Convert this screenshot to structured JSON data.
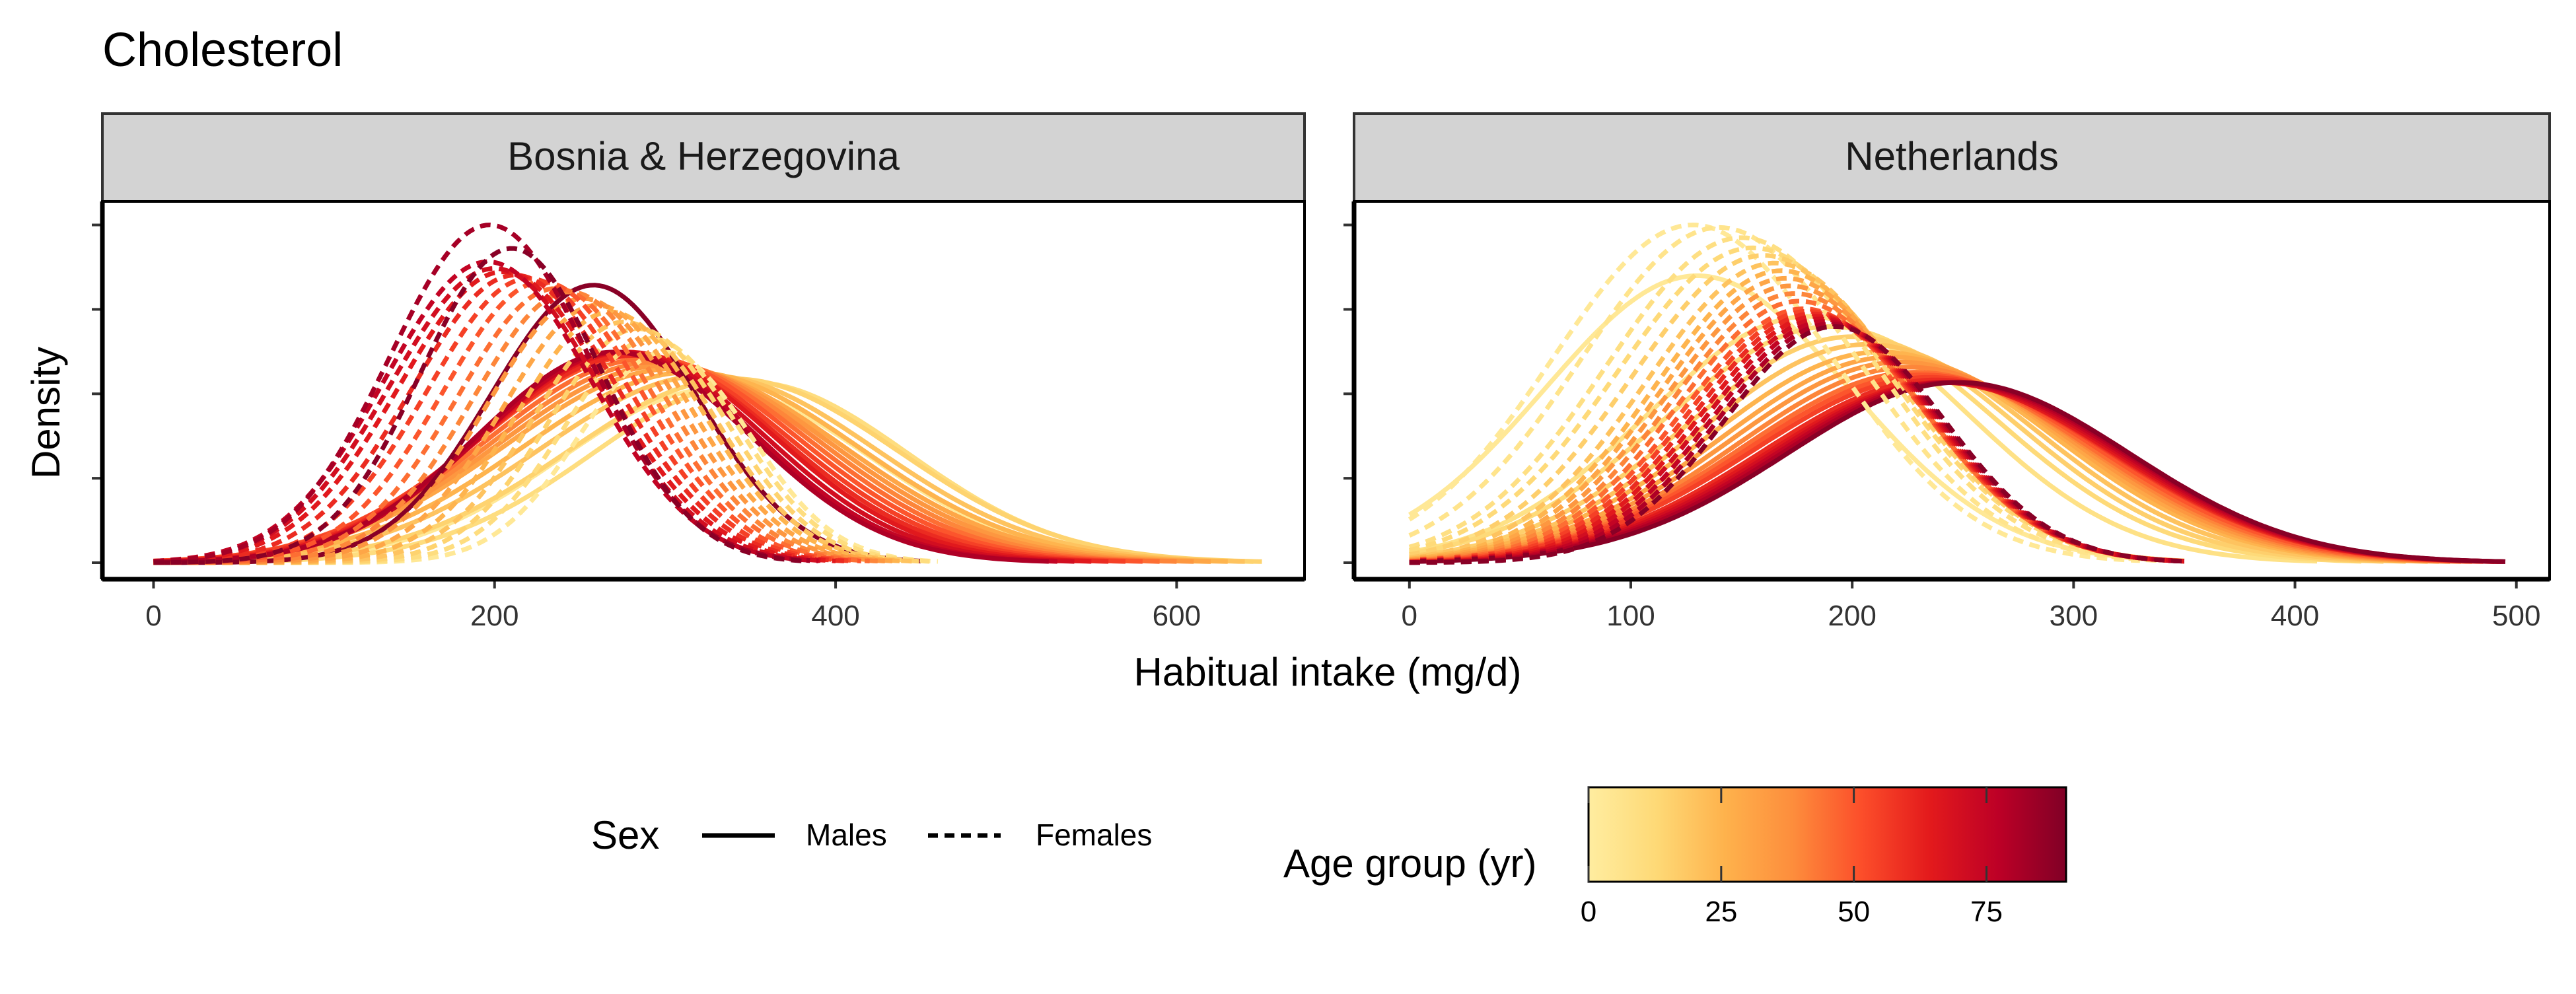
{
  "chart_data": {
    "type": "line",
    "title": "Cholesterol",
    "xlabel": "Habitual intake (mg/d)",
    "ylabel": "Density",
    "grid": false,
    "panels": [
      {
        "name": "Bosnia & Herzegovina",
        "xlim": [
          -30,
          675
        ],
        "xticks": [
          0,
          200,
          400,
          600
        ],
        "x_range": [
          0,
          650
        ],
        "curves": [
          {
            "sex": "Males",
            "age": 3,
            "peak_x": 330,
            "peak_density": 0.0052,
            "x_end": 620
          },
          {
            "sex": "Males",
            "age": 10,
            "peak_x": 350,
            "peak_density": 0.0054,
            "x_end": 645
          },
          {
            "sex": "Males",
            "age": 15,
            "peak_x": 340,
            "peak_density": 0.0055,
            "x_end": 650
          },
          {
            "sex": "Males",
            "age": 20,
            "peak_x": 325,
            "peak_density": 0.0056,
            "x_end": 640
          },
          {
            "sex": "Males",
            "age": 25,
            "peak_x": 315,
            "peak_density": 0.0057,
            "x_end": 630
          },
          {
            "sex": "Males",
            "age": 30,
            "peak_x": 305,
            "peak_density": 0.0058,
            "x_end": 620
          },
          {
            "sex": "Males",
            "age": 35,
            "peak_x": 300,
            "peak_density": 0.0059,
            "x_end": 610
          },
          {
            "sex": "Males",
            "age": 40,
            "peak_x": 295,
            "peak_density": 0.006,
            "x_end": 600
          },
          {
            "sex": "Males",
            "age": 45,
            "peak_x": 290,
            "peak_density": 0.0061,
            "x_end": 590
          },
          {
            "sex": "Males",
            "age": 50,
            "peak_x": 285,
            "peak_density": 0.0062,
            "x_end": 580
          },
          {
            "sex": "Males",
            "age": 55,
            "peak_x": 282,
            "peak_density": 0.0062,
            "x_end": 570
          },
          {
            "sex": "Males",
            "age": 60,
            "peak_x": 280,
            "peak_density": 0.0062,
            "x_end": 560
          },
          {
            "sex": "Males",
            "age": 65,
            "peak_x": 278,
            "peak_density": 0.0063,
            "x_end": 550
          },
          {
            "sex": "Males",
            "age": 70,
            "peak_x": 275,
            "peak_density": 0.0063,
            "x_end": 540
          },
          {
            "sex": "Males",
            "age": 75,
            "peak_x": 273,
            "peak_density": 0.0063,
            "x_end": 530
          },
          {
            "sex": "Males",
            "age": 80,
            "peak_x": 270,
            "peak_density": 0.0063,
            "x_end": 525
          },
          {
            "sex": "Males",
            "age": 88,
            "peak_x": 258,
            "peak_density": 0.0083,
            "x_end": 450
          },
          {
            "sex": "Females",
            "age": 3,
            "peak_x": 300,
            "peak_density": 0.0063,
            "x_end": 460
          },
          {
            "sex": "Females",
            "age": 10,
            "peak_x": 292,
            "peak_density": 0.0067,
            "x_end": 455
          },
          {
            "sex": "Females",
            "age": 15,
            "peak_x": 284,
            "peak_density": 0.007,
            "x_end": 450
          },
          {
            "sex": "Females",
            "age": 20,
            "peak_x": 276,
            "peak_density": 0.0072,
            "x_end": 445
          },
          {
            "sex": "Females",
            "age": 25,
            "peak_x": 268,
            "peak_density": 0.0075,
            "x_end": 440
          },
          {
            "sex": "Females",
            "age": 30,
            "peak_x": 260,
            "peak_density": 0.0077,
            "x_end": 435
          },
          {
            "sex": "Females",
            "age": 35,
            "peak_x": 252,
            "peak_density": 0.0079,
            "x_end": 430
          },
          {
            "sex": "Females",
            "age": 40,
            "peak_x": 244,
            "peak_density": 0.0081,
            "x_end": 425
          },
          {
            "sex": "Females",
            "age": 45,
            "peak_x": 236,
            "peak_density": 0.0082,
            "x_end": 420
          },
          {
            "sex": "Females",
            "age": 50,
            "peak_x": 228,
            "peak_density": 0.0084,
            "x_end": 415
          },
          {
            "sex": "Females",
            "age": 55,
            "peak_x": 220,
            "peak_density": 0.0085,
            "x_end": 410
          },
          {
            "sex": "Females",
            "age": 60,
            "peak_x": 212,
            "peak_density": 0.0086,
            "x_end": 405
          },
          {
            "sex": "Females",
            "age": 65,
            "peak_x": 205,
            "peak_density": 0.0087,
            "x_end": 400
          },
          {
            "sex": "Females",
            "age": 70,
            "peak_x": 200,
            "peak_density": 0.0088,
            "x_end": 395
          },
          {
            "sex": "Females",
            "age": 75,
            "peak_x": 196,
            "peak_density": 0.009,
            "x_end": 390
          },
          {
            "sex": "Females",
            "age": 82,
            "peak_x": 197,
            "peak_density": 0.0101,
            "x_end": 385
          },
          {
            "sex": "Females",
            "age": 88,
            "peak_x": 210,
            "peak_density": 0.0094,
            "x_end": 380
          }
        ]
      },
      {
        "name": "Netherlands",
        "xlim": [
          -25,
          515
        ],
        "xticks": [
          0,
          100,
          200,
          300,
          400,
          500
        ],
        "x_range": [
          0,
          495
        ],
        "curves": [
          {
            "sex": "Males",
            "age": 3,
            "peak_x": 130,
            "peak_density": 0.0113,
            "x_end": 350
          },
          {
            "sex": "Males",
            "age": 8,
            "peak_x": 180,
            "peak_density": 0.0097,
            "x_end": 410
          },
          {
            "sex": "Males",
            "age": 12,
            "peak_x": 190,
            "peak_density": 0.0093,
            "x_end": 430
          },
          {
            "sex": "Males",
            "age": 16,
            "peak_x": 200,
            "peak_density": 0.0089,
            "x_end": 440
          },
          {
            "sex": "Males",
            "age": 20,
            "peak_x": 207,
            "peak_density": 0.0086,
            "x_end": 450
          },
          {
            "sex": "Males",
            "age": 25,
            "peak_x": 213,
            "peak_density": 0.0083,
            "x_end": 460
          },
          {
            "sex": "Males",
            "age": 30,
            "peak_x": 218,
            "peak_density": 0.0081,
            "x_end": 465
          },
          {
            "sex": "Males",
            "age": 35,
            "peak_x": 222,
            "peak_density": 0.0079,
            "x_end": 470
          },
          {
            "sex": "Males",
            "age": 40,
            "peak_x": 226,
            "peak_density": 0.0077,
            "x_end": 475
          },
          {
            "sex": "Males",
            "age": 45,
            "peak_x": 229,
            "peak_density": 0.0075,
            "x_end": 480
          },
          {
            "sex": "Males",
            "age": 50,
            "peak_x": 232,
            "peak_density": 0.0074,
            "x_end": 485
          },
          {
            "sex": "Males",
            "age": 55,
            "peak_x": 235,
            "peak_density": 0.0073,
            "x_end": 490
          },
          {
            "sex": "Males",
            "age": 60,
            "peak_x": 238,
            "peak_density": 0.0072,
            "x_end": 490
          },
          {
            "sex": "Males",
            "age": 65,
            "peak_x": 240,
            "peak_density": 0.0071,
            "x_end": 492
          },
          {
            "sex": "Males",
            "age": 70,
            "peak_x": 242,
            "peak_density": 0.0071,
            "x_end": 493
          },
          {
            "sex": "Males",
            "age": 75,
            "peak_x": 244,
            "peak_density": 0.0071,
            "x_end": 494
          },
          {
            "sex": "Males",
            "age": 80,
            "peak_x": 246,
            "peak_density": 0.0071,
            "x_end": 495
          },
          {
            "sex": "Males",
            "age": 88,
            "peak_x": 248,
            "peak_density": 0.0071,
            "x_end": 495
          },
          {
            "sex": "Females",
            "age": 3,
            "peak_x": 128,
            "peak_density": 0.0133,
            "x_end": 330
          },
          {
            "sex": "Females",
            "age": 6,
            "peak_x": 140,
            "peak_density": 0.0132,
            "x_end": 340
          },
          {
            "sex": "Females",
            "age": 9,
            "peak_x": 150,
            "peak_density": 0.0128,
            "x_end": 345
          },
          {
            "sex": "Females",
            "age": 12,
            "peak_x": 155,
            "peak_density": 0.0124,
            "x_end": 350
          },
          {
            "sex": "Females",
            "age": 16,
            "peak_x": 160,
            "peak_density": 0.0121,
            "x_end": 350
          },
          {
            "sex": "Females",
            "age": 20,
            "peak_x": 165,
            "peak_density": 0.0118,
            "x_end": 350
          },
          {
            "sex": "Females",
            "age": 25,
            "peak_x": 168,
            "peak_density": 0.0115,
            "x_end": 350
          },
          {
            "sex": "Females",
            "age": 30,
            "peak_x": 170,
            "peak_density": 0.0112,
            "x_end": 350
          },
          {
            "sex": "Females",
            "age": 35,
            "peak_x": 172,
            "peak_density": 0.0109,
            "x_end": 350
          },
          {
            "sex": "Females",
            "age": 40,
            "peak_x": 174,
            "peak_density": 0.0106,
            "x_end": 350
          },
          {
            "sex": "Females",
            "age": 45,
            "peak_x": 176,
            "peak_density": 0.0103,
            "x_end": 350
          },
          {
            "sex": "Females",
            "age": 50,
            "peak_x": 178,
            "peak_density": 0.01,
            "x_end": 350
          },
          {
            "sex": "Females",
            "age": 55,
            "peak_x": 180,
            "peak_density": 0.0099,
            "x_end": 350
          },
          {
            "sex": "Females",
            "age": 60,
            "peak_x": 182,
            "peak_density": 0.0098,
            "x_end": 350
          },
          {
            "sex": "Females",
            "age": 65,
            "peak_x": 184,
            "peak_density": 0.0097,
            "x_end": 350
          },
          {
            "sex": "Females",
            "age": 70,
            "peak_x": 186,
            "peak_density": 0.0096,
            "x_end": 350
          },
          {
            "sex": "Females",
            "age": 75,
            "peak_x": 188,
            "peak_density": 0.0095,
            "x_end": 350
          },
          {
            "sex": "Females",
            "age": 80,
            "peak_x": 190,
            "peak_density": 0.0094,
            "x_end": 350
          },
          {
            "sex": "Females",
            "age": 88,
            "peak_x": 192,
            "peak_density": 0.0093,
            "x_end": 350
          }
        ]
      }
    ],
    "legend": {
      "sex": {
        "title": "Sex",
        "entries": [
          {
            "label": "Males",
            "linetype": "solid"
          },
          {
            "label": "Females",
            "linetype": "dashed"
          }
        ]
      },
      "age": {
        "title": "Age group (yr)",
        "range": [
          0,
          90
        ],
        "ticks": [
          "0",
          "25",
          "50",
          "75"
        ],
        "tick_values": [
          0,
          25,
          50,
          75
        ]
      },
      "placement": "bottom"
    },
    "colors": {
      "scale": [
        "#FFEDA0",
        "#FED976",
        "#FEB24C",
        "#FD8D3C",
        "#FC4E2A",
        "#E31A1C",
        "#BD0026",
        "#800026"
      ],
      "strip_background": "#D3D3D3",
      "axis": "#000000",
      "tick_label": "#333333"
    }
  }
}
